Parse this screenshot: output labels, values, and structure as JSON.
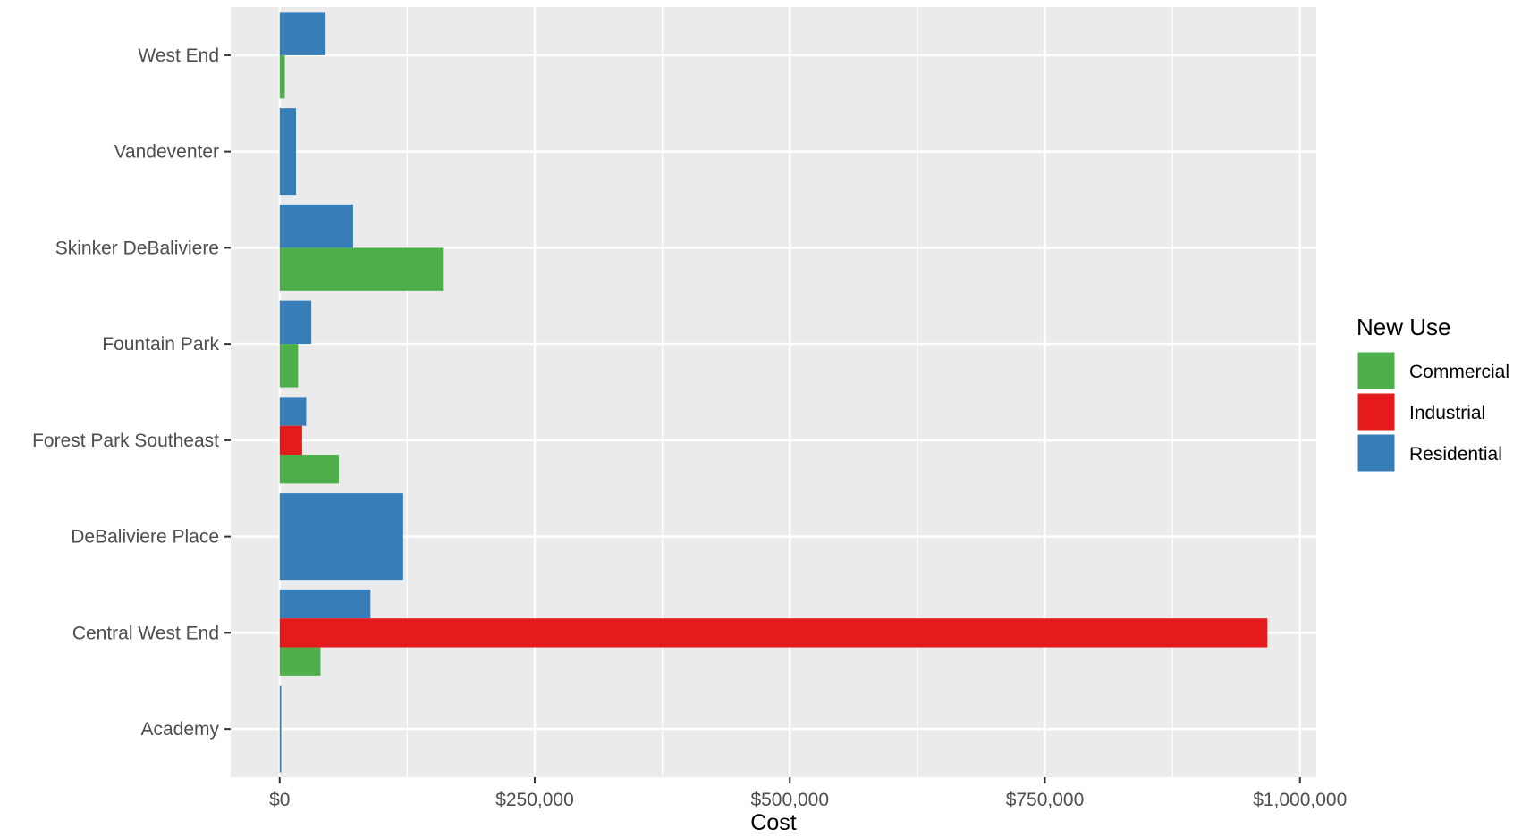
{
  "chart_data": {
    "type": "bar",
    "orientation": "horizontal",
    "categories": [
      "Academy",
      "Central West End",
      "DeBaliviere Place",
      "Forest Park Southeast",
      "Fountain Park",
      "Skinker DeBaliviere",
      "Vandeventer",
      "West End"
    ],
    "series": [
      {
        "name": "Commercial",
        "color": "#4DAF4A",
        "values": [
          null,
          40000,
          null,
          58000,
          18000,
          160000,
          null,
          5000
        ]
      },
      {
        "name": "Industrial",
        "color": "#E41A1C",
        "values": [
          null,
          968000,
          null,
          22000,
          null,
          null,
          null,
          null
        ]
      },
      {
        "name": "Residential",
        "color": "#377EB8",
        "values": [
          1500,
          89000,
          121000,
          26000,
          31000,
          72000,
          16000,
          45000
        ]
      }
    ],
    "x_ticks": [
      {
        "value": 0,
        "label": "$0"
      },
      {
        "value": 250000,
        "label": "$250,000"
      },
      {
        "value": 500000,
        "label": "$500,000"
      },
      {
        "value": 750000,
        "label": "$750,000"
      },
      {
        "value": 1000000,
        "label": "$1,000,000"
      }
    ],
    "xlim": [
      -48000,
      1016000
    ],
    "xlabel": "Cost",
    "ylabel": "",
    "legend": {
      "title": "New Use",
      "position": "right"
    },
    "grid": true,
    "panel_background": "#EBEBEB",
    "grid_color": "#FFFFFF"
  }
}
